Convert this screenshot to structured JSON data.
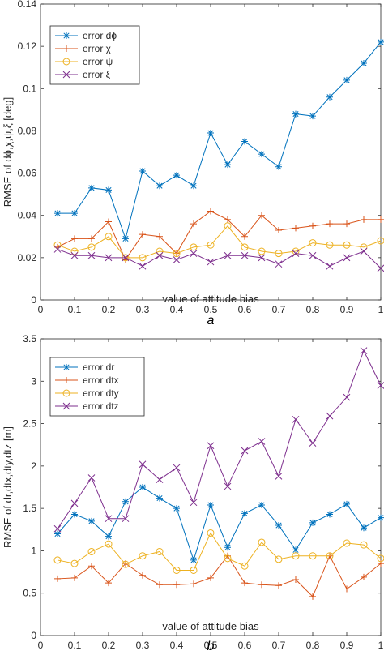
{
  "chart_data": [
    {
      "type": "line",
      "panel_label": "a",
      "xlabel": "value of attitude bias",
      "ylabel": "RMSE of dϕ,χ,ψ,ξ [deg]",
      "xlim": [
        0,
        1
      ],
      "ylim": [
        0,
        0.14
      ],
      "xticks": [
        0,
        0.1,
        0.2,
        0.3,
        0.4,
        0.5,
        0.6,
        0.7,
        0.8,
        0.9,
        1
      ],
      "xtick_labels": [
        "0",
        "0.1",
        "0.2",
        "0.3",
        "0.4",
        "0.5",
        "0.6",
        "0.7",
        "0.8",
        "0.9",
        "1"
      ],
      "yticks": [
        0,
        0.02,
        0.04,
        0.06,
        0.08,
        0.1,
        0.12,
        0.14
      ],
      "ytick_labels": [
        "0",
        "0.02",
        "0.04",
        "0.06",
        "0.08",
        "0.1",
        "0.12",
        "0.14"
      ],
      "grid": false,
      "legend_position": "top-left",
      "x": [
        0.05,
        0.1,
        0.15,
        0.2,
        0.25,
        0.3,
        0.35,
        0.4,
        0.45,
        0.5,
        0.55,
        0.6,
        0.65,
        0.7,
        0.75,
        0.8,
        0.85,
        0.9,
        0.95,
        1.0
      ],
      "series": [
        {
          "name": "error dϕ",
          "color": "#0072BD",
          "marker": "asterisk",
          "values": [
            0.041,
            0.041,
            0.053,
            0.052,
            0.029,
            0.061,
            0.054,
            0.059,
            0.054,
            0.079,
            0.064,
            0.075,
            0.069,
            0.063,
            0.088,
            0.087,
            0.096,
            0.104,
            0.112,
            0.122
          ]
        },
        {
          "name": "error χ",
          "color": "#D95319",
          "marker": "plus",
          "values": [
            0.025,
            0.029,
            0.029,
            0.037,
            0.019,
            0.031,
            0.03,
            0.022,
            0.036,
            0.042,
            0.038,
            0.03,
            0.04,
            0.033,
            0.034,
            0.035,
            0.036,
            0.036,
            0.038,
            0.038
          ]
        },
        {
          "name": "error ψ",
          "color": "#EDB120",
          "marker": "circle",
          "values": [
            0.026,
            0.023,
            0.025,
            0.03,
            0.02,
            0.02,
            0.023,
            0.022,
            0.025,
            0.026,
            0.035,
            0.025,
            0.023,
            0.022,
            0.023,
            0.027,
            0.026,
            0.026,
            0.025,
            0.028
          ]
        },
        {
          "name": "error ξ",
          "color": "#7E2F8E",
          "marker": "x",
          "values": [
            0.024,
            0.021,
            0.021,
            0.02,
            0.02,
            0.016,
            0.021,
            0.019,
            0.022,
            0.018,
            0.021,
            0.021,
            0.02,
            0.017,
            0.022,
            0.021,
            0.016,
            0.02,
            0.023,
            0.015
          ]
        }
      ]
    },
    {
      "type": "line",
      "panel_label": "b",
      "xlabel": "value of attitude bias",
      "ylabel": "RMSE of dr,dtx,dty,dtz [m]",
      "xlim": [
        0,
        1
      ],
      "ylim": [
        0,
        3.5
      ],
      "xticks": [
        0,
        0.1,
        0.2,
        0.3,
        0.4,
        0.5,
        0.6,
        0.7,
        0.8,
        0.9,
        1
      ],
      "xtick_labels": [
        "0",
        "0.1",
        "0.2",
        "0.3",
        "0.4",
        "0.5",
        "0.6",
        "0.7",
        "0.8",
        "0.9",
        "1"
      ],
      "yticks": [
        0,
        0.5,
        1,
        1.5,
        2,
        2.5,
        3,
        3.5
      ],
      "ytick_labels": [
        "0",
        "0.5",
        "1",
        "1.5",
        "2",
        "2.5",
        "3",
        "3.5"
      ],
      "grid": false,
      "legend_position": "top-left",
      "x": [
        0.05,
        0.1,
        0.15,
        0.2,
        0.25,
        0.3,
        0.35,
        0.4,
        0.45,
        0.5,
        0.55,
        0.6,
        0.65,
        0.7,
        0.75,
        0.8,
        0.85,
        0.9,
        0.95,
        1.0
      ],
      "series": [
        {
          "name": "error dr",
          "color": "#0072BD",
          "marker": "asterisk",
          "values": [
            1.2,
            1.43,
            1.35,
            1.17,
            1.58,
            1.75,
            1.62,
            1.5,
            0.89,
            1.54,
            1.04,
            1.44,
            1.54,
            1.3,
            1.01,
            1.33,
            1.43,
            1.55,
            1.27,
            1.39
          ]
        },
        {
          "name": "error dtx",
          "color": "#D95319",
          "marker": "plus",
          "values": [
            0.67,
            0.68,
            0.82,
            0.62,
            0.85,
            0.71,
            0.6,
            0.6,
            0.61,
            0.68,
            0.94,
            0.62,
            0.6,
            0.59,
            0.66,
            0.46,
            0.94,
            0.55,
            0.69,
            0.85
          ]
        },
        {
          "name": "error dty",
          "color": "#EDB120",
          "marker": "circle",
          "values": [
            0.89,
            0.85,
            0.99,
            1.08,
            0.84,
            0.94,
            0.99,
            0.77,
            0.77,
            1.21,
            0.91,
            0.82,
            1.1,
            0.9,
            0.94,
            0.94,
            0.94,
            1.09,
            1.07,
            0.91
          ]
        },
        {
          "name": "error dtz",
          "color": "#7E2F8E",
          "marker": "x",
          "values": [
            1.26,
            1.56,
            1.86,
            1.38,
            1.38,
            2.02,
            1.84,
            1.98,
            1.57,
            2.24,
            1.76,
            2.18,
            2.29,
            1.88,
            2.55,
            2.27,
            2.59,
            2.81,
            3.36,
            2.95
          ]
        }
      ]
    }
  ]
}
